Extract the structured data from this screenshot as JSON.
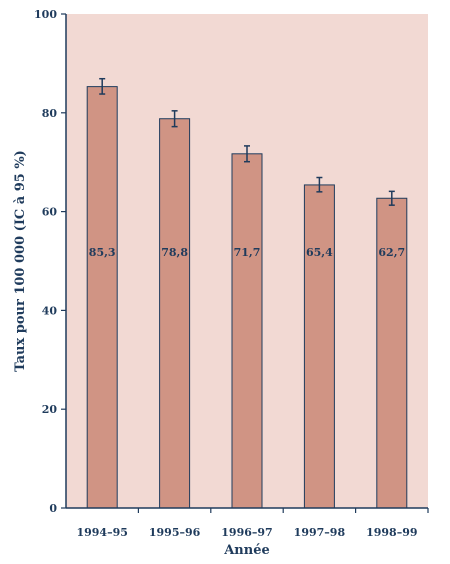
{
  "chart_data": {
    "type": "bar",
    "title": "",
    "xlabel": "Année",
    "ylabel": "Taux pour 100 000 (IC à 95 %)",
    "categories": [
      "1994–95",
      "1995–96",
      "1996–97",
      "1997–98",
      "1998–99"
    ],
    "values": [
      85.3,
      78.8,
      71.7,
      65.4,
      62.7
    ],
    "value_labels": [
      "85,3",
      "78,8",
      "71,7",
      "65,4",
      "62,7"
    ],
    "ci_low": [
      83.8,
      77.2,
      70.1,
      64.0,
      61.3
    ],
    "ci_high": [
      86.9,
      80.4,
      73.3,
      66.9,
      64.1
    ],
    "ylim": [
      0,
      100
    ],
    "yticks": [
      0,
      20,
      40,
      60,
      80,
      100
    ],
    "grid": false,
    "colors": {
      "plot_background": "#f2d9d3",
      "bar_fill": "#d09484",
      "bar_stroke": "#1f3b5c",
      "axis": "#1f3b5c",
      "text": "#1f3b5c",
      "error_bar": "#1f3b5c"
    }
  }
}
